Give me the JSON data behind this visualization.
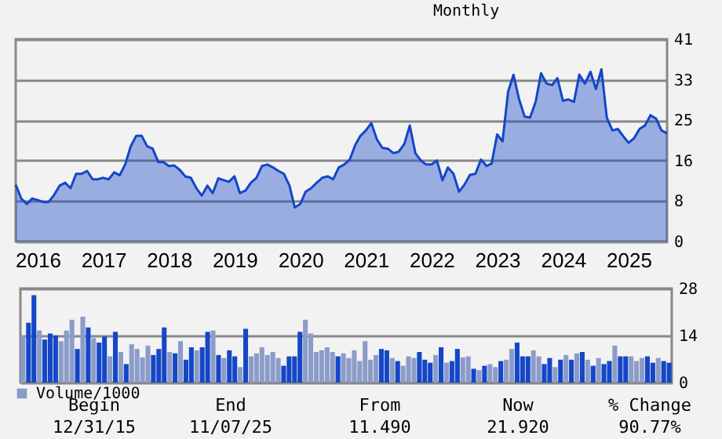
{
  "chart_data": [
    {
      "type": "area",
      "subtitle": "Monthly",
      "x": [
        "2015-12",
        "2016-01",
        "2016-02",
        "2016-03",
        "2016-04",
        "2016-05",
        "2016-06",
        "2016-07",
        "2016-08",
        "2016-09",
        "2016-10",
        "2016-11",
        "2016-12",
        "2017-01",
        "2017-02",
        "2017-03",
        "2017-04",
        "2017-05",
        "2017-06",
        "2017-07",
        "2017-08",
        "2017-09",
        "2017-10",
        "2017-11",
        "2017-12",
        "2018-01",
        "2018-02",
        "2018-03",
        "2018-04",
        "2018-05",
        "2018-06",
        "2018-07",
        "2018-08",
        "2018-09",
        "2018-10",
        "2018-11",
        "2018-12",
        "2019-01",
        "2019-02",
        "2019-03",
        "2019-04",
        "2019-05",
        "2019-06",
        "2019-07",
        "2019-08",
        "2019-09",
        "2019-10",
        "2019-11",
        "2019-12",
        "2020-01",
        "2020-02",
        "2020-03",
        "2020-04",
        "2020-05",
        "2020-06",
        "2020-07",
        "2020-08",
        "2020-09",
        "2020-10",
        "2020-11",
        "2020-12",
        "2021-01",
        "2021-02",
        "2021-03",
        "2021-04",
        "2021-05",
        "2021-06",
        "2021-07",
        "2021-08",
        "2021-09",
        "2021-10",
        "2021-11",
        "2021-12",
        "2022-01",
        "2022-02",
        "2022-03",
        "2022-04",
        "2022-05",
        "2022-06",
        "2022-07",
        "2022-08",
        "2022-09",
        "2022-10",
        "2022-11",
        "2022-12",
        "2023-01",
        "2023-02",
        "2023-03",
        "2023-04",
        "2023-05",
        "2023-06",
        "2023-07",
        "2023-08",
        "2023-09",
        "2023-10",
        "2023-11",
        "2023-12",
        "2024-01",
        "2024-02",
        "2024-03",
        "2024-04",
        "2024-05",
        "2024-06",
        "2024-07",
        "2024-08",
        "2024-09",
        "2024-10",
        "2024-11",
        "2024-12",
        "2025-01",
        "2025-02",
        "2025-03",
        "2025-04",
        "2025-05",
        "2025-06",
        "2025-07",
        "2025-08",
        "2025-09",
        "2025-10",
        "2025-11"
      ],
      "series": [
        {
          "color": "#1446c8",
          "values": [
            11.5,
            8.7,
            7.6,
            8.7,
            8.4,
            8.0,
            8.0,
            9.4,
            11.3,
            11.9,
            10.8,
            13.7,
            13.7,
            14.3,
            12.6,
            12.6,
            12.9,
            12.6,
            14.0,
            13.4,
            15.6,
            19.3,
            21.4,
            21.4,
            19.3,
            18.8,
            16.1,
            16.1,
            15.3,
            15.4,
            14.5,
            13.2,
            12.9,
            10.8,
            9.3,
            11.3,
            9.8,
            12.8,
            12.4,
            12.1,
            13.2,
            9.8,
            10.3,
            11.9,
            12.9,
            15.3,
            15.6,
            15.0,
            14.3,
            13.7,
            11.3,
            6.9,
            7.6,
            10.1,
            10.8,
            11.9,
            12.9,
            13.2,
            12.6,
            15.0,
            15.6,
            16.6,
            19.6,
            21.4,
            22.5,
            24.0,
            20.7,
            19.0,
            18.8,
            17.9,
            18.2,
            19.8,
            23.5,
            17.9,
            16.4,
            15.6,
            15.6,
            16.4,
            12.4,
            15.0,
            13.7,
            10.1,
            11.5,
            13.5,
            13.7,
            16.6,
            15.3,
            15.8,
            21.7,
            20.3,
            30.4,
            33.8,
            28.8,
            25.3,
            25.1,
            28.3,
            34.1,
            32.0,
            31.7,
            33.1,
            28.5,
            28.8,
            28.3,
            33.8,
            32.0,
            34.4,
            30.9,
            34.9,
            25.1,
            22.5,
            22.8,
            21.4,
            20.0,
            20.9,
            22.8,
            23.5,
            25.6,
            24.9,
            22.5,
            21.9
          ]
        }
      ],
      "xlim": [
        "2015-12",
        "2025-11"
      ],
      "xticks": [
        {
          "value": "2016-04",
          "label": "2016"
        },
        {
          "value": "2017-04",
          "label": "2017"
        },
        {
          "value": "2018-04",
          "label": "2018"
        },
        {
          "value": "2019-04",
          "label": "2019"
        },
        {
          "value": "2020-04",
          "label": "2020"
        },
        {
          "value": "2021-04",
          "label": "2021"
        },
        {
          "value": "2022-04",
          "label": "2022"
        },
        {
          "value": "2023-04",
          "label": "2023"
        },
        {
          "value": "2024-04",
          "label": "2024"
        },
        {
          "value": "2025-04",
          "label": "2025"
        }
      ],
      "ylim": [
        0,
        41
      ],
      "yticks": [
        0,
        {
          "value": 8.2,
          "label": "8"
        },
        {
          "value": 16.4,
          "label": "16"
        },
        {
          "value": 24.6,
          "label": "25"
        },
        {
          "value": 32.8,
          "label": "33"
        },
        41
      ],
      "grid": "y"
    },
    {
      "type": "bar",
      "categories": [
        null,
        null,
        null,
        null,
        null,
        null,
        null,
        null,
        null,
        null,
        null,
        null,
        null,
        null,
        null,
        null,
        null,
        null,
        null,
        null,
        null,
        null,
        null,
        null,
        null,
        null,
        null,
        null,
        null,
        null,
        null,
        null,
        null,
        null,
        null,
        null,
        null,
        null,
        null,
        null,
        null,
        null,
        null,
        null,
        null,
        null,
        null,
        null,
        null,
        null,
        null,
        null,
        null,
        null,
        null,
        null,
        null,
        null,
        null,
        null,
        null,
        null,
        null,
        null,
        null,
        null,
        null,
        null,
        null,
        null,
        null,
        null,
        null,
        null,
        null,
        null,
        null,
        null,
        null,
        null,
        null,
        null,
        null,
        null,
        null,
        null,
        null,
        null,
        null,
        null,
        null,
        null,
        null,
        null,
        null,
        null,
        null,
        null,
        null,
        null,
        null,
        null,
        null,
        null,
        null,
        null,
        null,
        null,
        null,
        null,
        null,
        null,
        null,
        null,
        null,
        null,
        null,
        null,
        null,
        null
      ],
      "series": [
        {
          "name": "Volume/1000",
          "color": "#8c9cc8",
          "colors": [
            "#8c9cc8",
            "#1446c8",
            "#1446c8",
            "#8c9cc8",
            "#1446c8",
            "#1446c8",
            "#1446c8",
            "#8c9cc8",
            "#8c9cc8",
            "#8c9cc8",
            "#1446c8",
            "#8c9cc8",
            "#1446c8",
            "#8c9cc8",
            "#1446c8",
            "#1446c8",
            "#8c9cc8",
            "#1446c8",
            "#8c9cc8",
            "#1446c8",
            "#8c9cc8",
            "#8c9cc8",
            "#8c9cc8",
            "#8c9cc8",
            "#1446c8",
            "#1446c8",
            "#1446c8",
            "#8c9cc8",
            "#1446c8",
            "#8c9cc8",
            "#1446c8",
            "#1446c8",
            "#8c9cc8",
            "#1446c8",
            "#1446c8",
            "#8c9cc8",
            "#1446c8",
            "#8c9cc8",
            "#1446c8",
            "#1446c8",
            "#8c9cc8",
            "#1446c8",
            "#8c9cc8",
            "#8c9cc8",
            "#8c9cc8",
            "#8c9cc8",
            "#8c9cc8",
            "#8c9cc8",
            "#1446c8",
            "#1446c8",
            "#1446c8",
            "#1446c8",
            "#8c9cc8",
            "#8c9cc8",
            "#8c9cc8",
            "#8c9cc8",
            "#8c9cc8",
            "#8c9cc8",
            "#1446c8",
            "#8c9cc8",
            "#8c9cc8",
            "#8c9cc8",
            "#8c9cc8",
            "#8c9cc8",
            "#8c9cc8",
            "#8c9cc8",
            "#1446c8",
            "#1446c8",
            "#8c9cc8",
            "#1446c8",
            "#8c9cc8",
            "#8c9cc8",
            "#8c9cc8",
            "#1446c8",
            "#1446c8",
            "#1446c8",
            "#8c9cc8",
            "#1446c8",
            "#8c9cc8",
            "#1446c8",
            "#1446c8",
            "#8c9cc8",
            "#8c9cc8",
            "#1446c8",
            "#8c9cc8",
            "#1446c8",
            "#8c9cc8",
            "#8c9cc8",
            "#1446c8",
            "#8c9cc8",
            "#8c9cc8",
            "#1446c8",
            "#1446c8",
            "#1446c8",
            "#8c9cc8",
            "#8c9cc8",
            "#1446c8",
            "#1446c8",
            "#8c9cc8",
            "#1446c8",
            "#8c9cc8",
            "#1446c8",
            "#8c9cc8",
            "#1446c8",
            "#8c9cc8",
            "#1446c8",
            "#8c9cc8",
            "#1446c8",
            "#1446c8",
            "#8c9cc8",
            "#1446c8",
            "#1446c8",
            "#8c9cc8",
            "#8c9cc8",
            "#8c9cc8",
            "#1446c8",
            "#1446c8",
            "#8c9cc8",
            "#1446c8",
            "#1446c8"
          ],
          "values": [
            14.0,
            17.8,
            26.0,
            15.5,
            12.8,
            14.6,
            14.0,
            12.3,
            15.5,
            18.7,
            10.0,
            19.6,
            16.4,
            13.2,
            11.9,
            13.7,
            7.8,
            15.1,
            9.1,
            5.5,
            11.4,
            10.0,
            7.5,
            11.0,
            8.2,
            10.0,
            16.4,
            9.1,
            8.7,
            12.3,
            6.8,
            10.5,
            9.6,
            10.5,
            15.1,
            15.5,
            8.2,
            7.3,
            9.6,
            7.8,
            4.6,
            16.0,
            7.8,
            8.7,
            10.5,
            8.2,
            9.1,
            7.3,
            5.0,
            7.8,
            7.8,
            15.1,
            18.7,
            14.6,
            9.1,
            9.6,
            10.5,
            9.1,
            7.8,
            8.7,
            7.3,
            9.6,
            6.4,
            12.3,
            6.8,
            8.2,
            10.0,
            9.6,
            7.3,
            6.4,
            5.0,
            7.8,
            7.3,
            9.1,
            6.8,
            5.9,
            8.2,
            10.5,
            5.9,
            6.4,
            10.0,
            7.5,
            7.8,
            4.1,
            3.7,
            5.0,
            5.5,
            4.6,
            6.4,
            6.8,
            10.0,
            11.9,
            7.8,
            7.8,
            9.6,
            7.8,
            5.5,
            7.3,
            4.6,
            6.8,
            8.2,
            6.8,
            8.7,
            9.1,
            6.8,
            5.0,
            7.3,
            5.5,
            6.4,
            11.0,
            7.8,
            7.8,
            7.8,
            6.4,
            7.3,
            7.8,
            5.9,
            7.3,
            6.4,
            5.9
          ]
        }
      ],
      "ylim": [
        0,
        28
      ],
      "yticks": [
        0,
        14,
        28
      ],
      "grid": "y",
      "legend": "bottom left",
      "tick_labels": "y"
    },
    {
      "type": "other",
      "annotations": [
        "Begin",
        "End",
        "From",
        "Now",
        "% Change",
        "12/31/15",
        "11/07/25",
        "11.490",
        "21.920",
        "90.77%"
      ]
    }
  ]
}
